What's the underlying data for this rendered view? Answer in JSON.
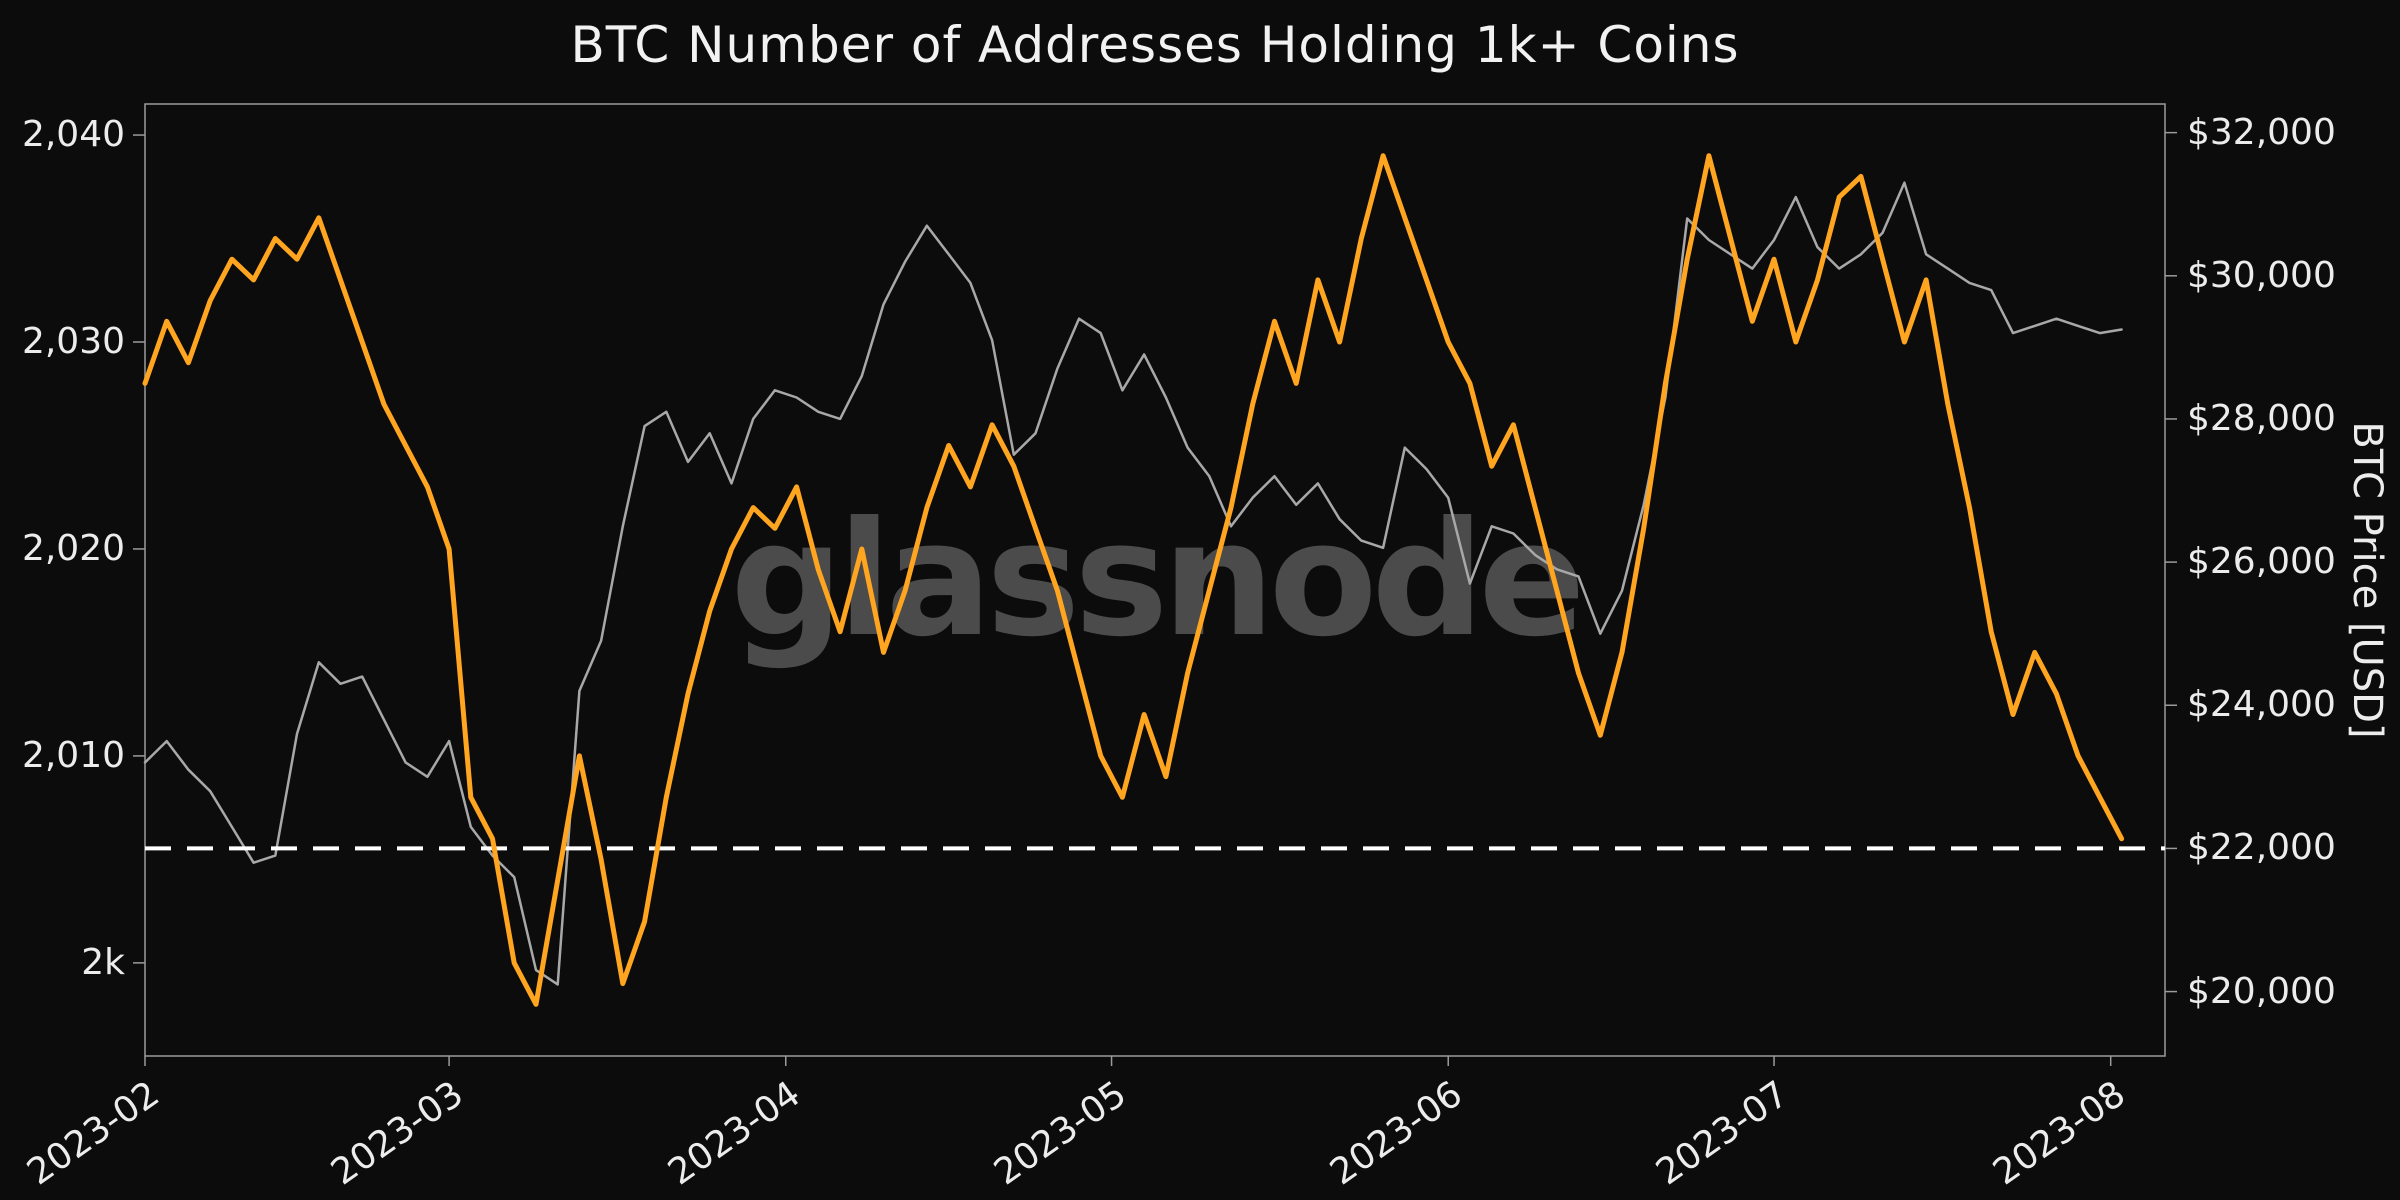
{
  "watermark": {
    "text": "glassnode"
  },
  "colors": {
    "background": "#0c0c0d",
    "addresses_line": "#ffa51f",
    "price_line": "#a8a8a8",
    "threshold_line": "#ffffff",
    "text": "#ececec",
    "watermark": "#8a8a8a",
    "plot_border": "#9b9b9b"
  },
  "chart_data": {
    "type": "line",
    "title": "BTC Number of Addresses Holding 1k+ Coins",
    "x_total_days": 186,
    "sample_interval_days": 2,
    "x_tick_days": [
      0,
      28,
      59,
      89,
      120,
      150,
      181
    ],
    "x_tick_labels": [
      "2023-02",
      "2023-03",
      "2023-04",
      "2023-05",
      "2023-06",
      "2023-07",
      "2023-08"
    ],
    "left_axis": {
      "label": "",
      "range": [
        1995.5,
        2041.5
      ],
      "ticks": [
        2000,
        2010,
        2020,
        2030,
        2040
      ],
      "tick_labels": [
        "2k",
        "2,010",
        "2,020",
        "2,030",
        "2,040"
      ]
    },
    "right_axis": {
      "label": "BTC Price [USD]",
      "range": [
        19100,
        32400
      ],
      "ticks": [
        20000,
        22000,
        24000,
        26000,
        28000,
        30000,
        32000
      ],
      "tick_labels": [
        "$20,000",
        "$22,000",
        "$24,000",
        "$26,000",
        "$28,000",
        "$30,000",
        "$32,000"
      ]
    },
    "series": [
      {
        "name": "Number of Addresses Holding 1k+ Coins",
        "axis": "left",
        "color": "#ffa51f",
        "width": 5,
        "values": [
          2028,
          2031,
          2029,
          2032,
          2034,
          2033,
          2035,
          2034,
          2036,
          2033,
          2030,
          2027,
          2025,
          2023,
          2020,
          2008,
          2006,
          2000,
          1998,
          2004,
          2010,
          2005,
          1999,
          2002,
          2008,
          2013,
          2017,
          2020,
          2022,
          2021,
          2023,
          2019,
          2016,
          2020,
          2015,
          2018,
          2022,
          2025,
          2023,
          2026,
          2024,
          2021,
          2018,
          2014,
          2010,
          2008,
          2012,
          2009,
          2014,
          2018,
          2022,
          2027,
          2031,
          2028,
          2033,
          2030,
          2035,
          2039,
          2036,
          2033,
          2030,
          2028,
          2024,
          2026,
          2022,
          2018,
          2014,
          2011,
          2015,
          2021,
          2028,
          2034,
          2039,
          2035,
          2031,
          2034,
          2030,
          2033,
          2037,
          2038,
          2034,
          2030,
          2033,
          2027,
          2022,
          2016,
          2012,
          2015,
          2013,
          2010,
          2008,
          2006
        ]
      },
      {
        "name": "BTC Price [USD]",
        "axis": "right",
        "color": "#a8a8a8",
        "width": 2.5,
        "values": [
          23200,
          23500,
          23100,
          22800,
          22300,
          21800,
          21900,
          23600,
          24600,
          24300,
          24400,
          23800,
          23200,
          23000,
          23500,
          22300,
          21900,
          21600,
          20300,
          20100,
          24200,
          24900,
          26500,
          27900,
          28100,
          27400,
          27800,
          27100,
          28000,
          28400,
          28300,
          28100,
          28000,
          28600,
          29600,
          30200,
          30700,
          30300,
          29900,
          29100,
          27500,
          27800,
          28700,
          29400,
          29200,
          28400,
          28900,
          28300,
          27600,
          27200,
          26500,
          26900,
          27200,
          26800,
          27100,
          26600,
          26300,
          26200,
          27600,
          27300,
          26900,
          25700,
          26500,
          26400,
          26100,
          25900,
          25800,
          25000,
          25600,
          26800,
          28300,
          30800,
          30500,
          30300,
          30100,
          30500,
          31100,
          30400,
          30100,
          30300,
          30600,
          31300,
          30300,
          30100,
          29900,
          29800,
          29200,
          29300,
          29400,
          29300,
          29200,
          29250
        ]
      }
    ],
    "annotations": [
      {
        "type": "hline",
        "axis": "right",
        "value": 22000,
        "style": "dashed",
        "color": "#ffffff"
      }
    ]
  }
}
